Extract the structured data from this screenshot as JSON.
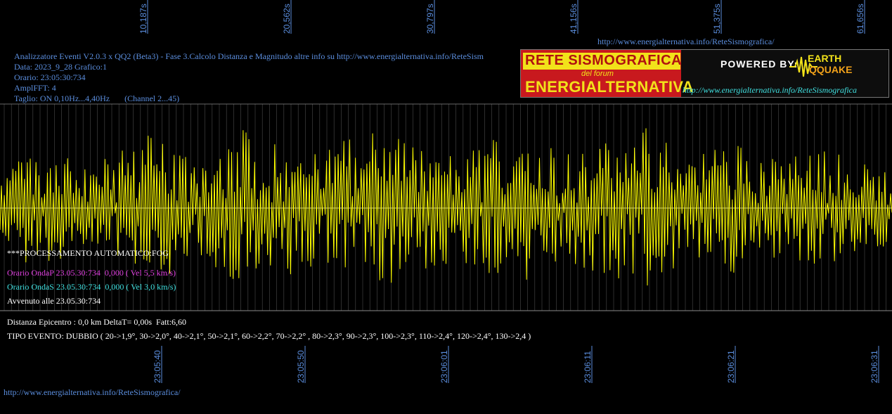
{
  "header": {
    "url_top": "http://www.energialternativa.info/ReteSismografica/",
    "line1": "Analizzatore Eventi V2.0.3 x QQ2 (Beta3) - Fase 3.Calcolo Distanza e Magnitudo altre info su http://www.energialternativa.info/ReteSism",
    "line2": "Data: 2023_9_28 Grafico:1",
    "line3": "Orario: 23:05:30:734",
    "line4": "AmplFFT: 4",
    "line5": "Taglio: ON 0,10Hz...4,40Hz       (Channel 2...45)"
  },
  "logo": {
    "title1": "RETE SISMOGRAFICA",
    "subtitle": "del forum",
    "title2": "ENERGIALTERNATIVA",
    "powered": "POWERED BY:",
    "earth": "EARTH",
    "qquake": "QQUAKE",
    "url": "http://www.energialternativa.info/ReteSismografica"
  },
  "info": {
    "processing": "***PROCESSAMENTO AUTOMATICO:FOG",
    "onda_p": "Orario OndaP 23.05.30:734  0,000 ( Vel 5,5 km/s)",
    "onda_s": "Orario OndaS 23.05.30:734  0,000 ( Vel 3,0 km/s)",
    "avvenuto": "Avvenuto alle 23.05.30:734",
    "distanza": "Distanza Epicentro : 0,0 km DeltaT= 0,00s  Fatt:6,60",
    "tipo_evento": "TIPO EVENTO: DUBBIO ( 20->1,9°, 30->2,0°, 40->2,1°, 50->2,1°, 60->2,2°, 70->2,2° , 80->2,3°, 90->2,3°, 100->2,3°, 110->2,4°, 120->2,4°, 130->2,4 )"
  },
  "footer": {
    "url_bottom": "http://www.energialternativa.info/ReteSismografica/"
  },
  "colors": {
    "signal": "#ffff00",
    "grid": "#8a8a8a",
    "label_blue": "#5b8ede",
    "baseline": "#bfbfbf"
  },
  "chart_data": {
    "type": "line",
    "series_color": "yellow",
    "x_top_ticks": [
      "10,187s",
      "20,562s",
      "30,797s",
      "41,156s",
      "51,375s",
      "61,656s"
    ],
    "x_bottom_ticks": [
      "23:05:40",
      "23:05:50",
      "23:06:01",
      "23:06:11",
      "23:06:21",
      "23:06:31"
    ],
    "x_range_s": [
      0,
      62.5
    ],
    "grid": true,
    "envelope": [
      0.3,
      0.55,
      0.65,
      0.5,
      0.45,
      0.55,
      0.75,
      0.8,
      0.6,
      0.55,
      0.7,
      0.85,
      0.75,
      0.7,
      0.55,
      0.7,
      0.8,
      0.85,
      0.65,
      0.6,
      0.55,
      0.65,
      0.75,
      0.8,
      0.7,
      0.6,
      0.65,
      0.75,
      0.85,
      0.7,
      0.55,
      0.6,
      0.7,
      0.6,
      0.5,
      0.55,
      0.6,
      0.55,
      0.45,
      0.4
    ]
  }
}
